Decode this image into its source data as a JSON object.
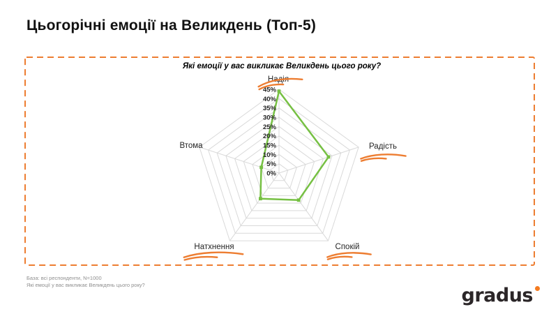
{
  "page": {
    "title": "Цьогорічні емоції на Великдень (Топ-5)",
    "footer": {
      "base_line": "База: всі респонденти, N=1000",
      "question_line": "Які емоції у вас викликає Великдень цього року?"
    },
    "logo": {
      "text": "gradus"
    }
  },
  "colors": {
    "accent_orange": "#ED7D31",
    "series_green": "#76C043",
    "grid": "#D9D9D9",
    "text_dark": "#262626",
    "footer_gray": "#8F8F8F",
    "logo_dark": "#2B2628",
    "logo_dot_orange": "#F47B20"
  },
  "chart_data": {
    "type": "radar",
    "title": "Які емоції у вас викликає Великдень цього року?",
    "categories": [
      "Надія",
      "Радість",
      "Спокій",
      "Натхнення",
      "Втома"
    ],
    "values": [
      44,
      28,
      18,
      17,
      10
    ],
    "unit": "%",
    "axis_min": 0,
    "axis_max": 45,
    "axis_step": 5,
    "tick_labels": [
      "45%",
      "40%",
      "35%",
      "30%",
      "25%",
      "20%",
      "15%",
      "10%",
      "5%",
      "0%"
    ],
    "underlined_categories": [
      "Надія",
      "Радість",
      "Спокій",
      "Натхнення"
    ],
    "grid": true,
    "legend": "none"
  }
}
